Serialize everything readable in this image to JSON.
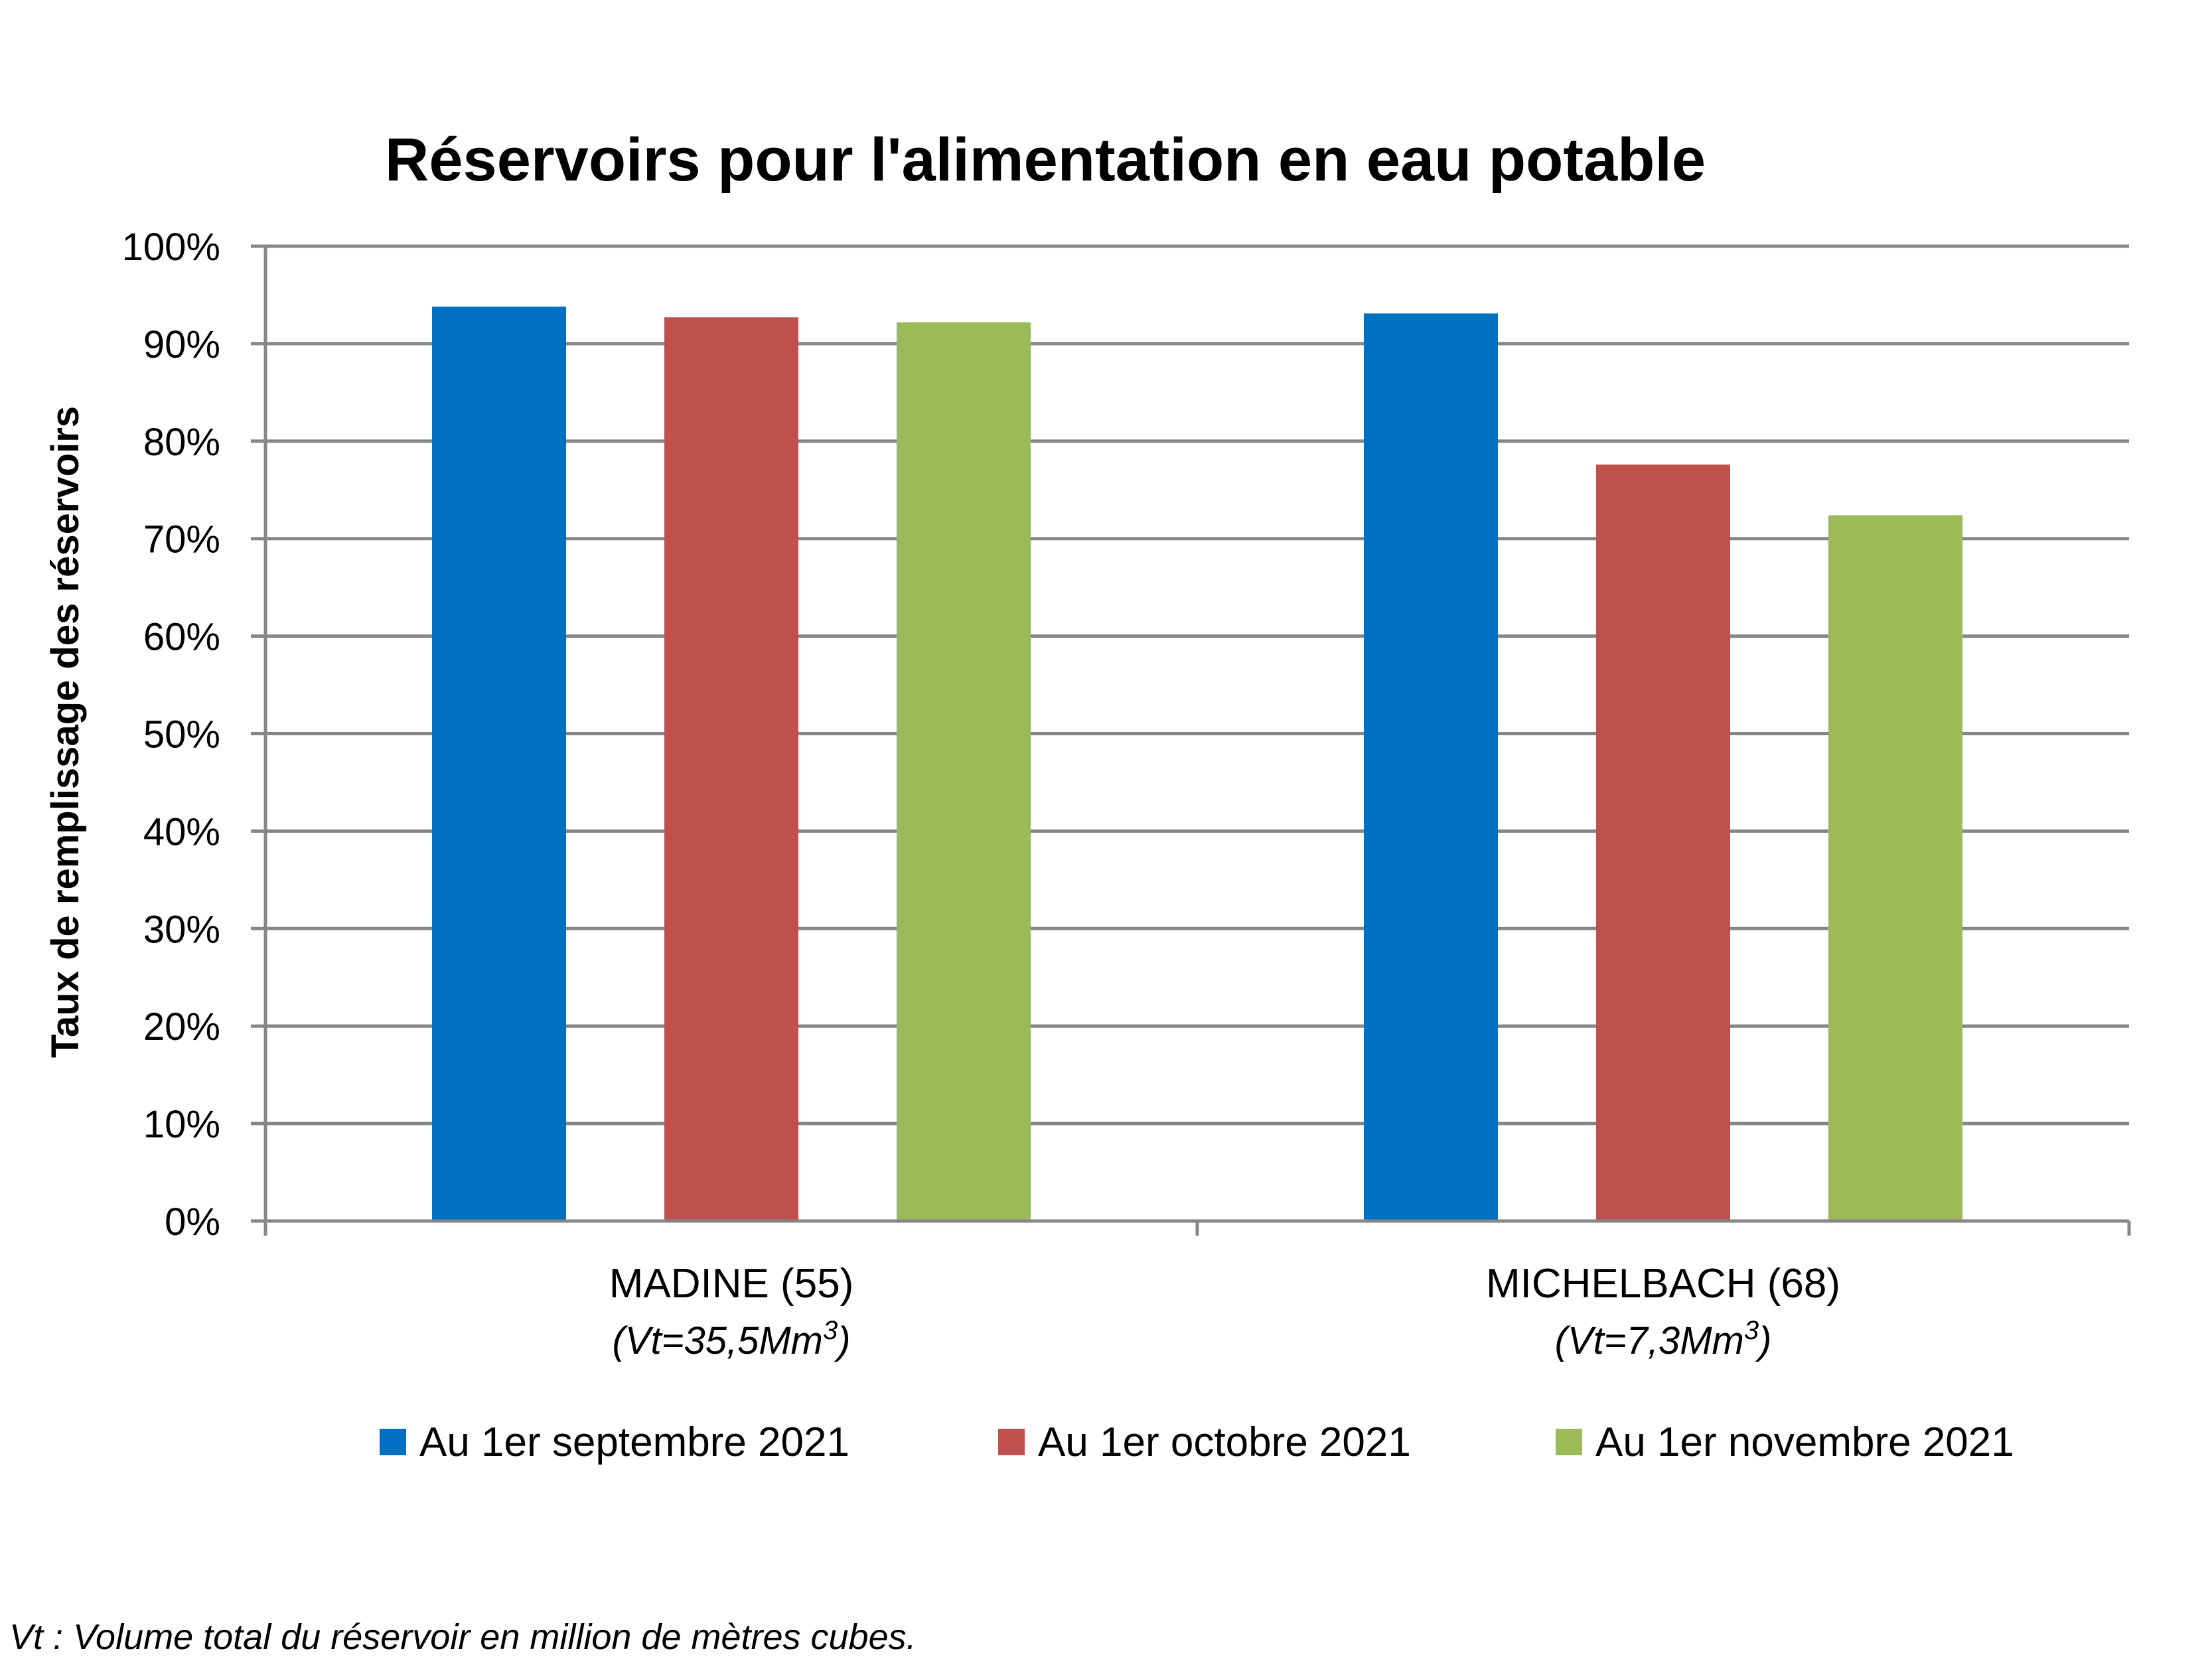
{
  "chart_data": {
    "type": "bar",
    "title": "Réservoirs pour l'alimentation en eau potable",
    "ylabel": "Taux de remplissage des réservoirs",
    "xlabel": "",
    "ylim": [
      0,
      100
    ],
    "yticks": [
      0,
      10,
      20,
      30,
      40,
      50,
      60,
      70,
      80,
      90,
      100
    ],
    "ytick_labels": [
      "0%",
      "10%",
      "20%",
      "30%",
      "40%",
      "50%",
      "60%",
      "70%",
      "80%",
      "90%",
      "100%"
    ],
    "grid": true,
    "legend_position": "bottom",
    "categories": [
      "MADINE (55)",
      "MICHELBACH (68)"
    ],
    "category_notes": [
      "(Vt=35,5Mm",
      "(Vt=7,3Mm"
    ],
    "category_note_superscript": "3",
    "category_note_suffix": ")",
    "series": [
      {
        "name": "Au 1er septembre 2021",
        "color": "#0070C0",
        "values": [
          93.8,
          93.1
        ]
      },
      {
        "name": "Au 1er octobre 2021",
        "color": "#C0504D",
        "values": [
          92.7,
          77.6
        ]
      },
      {
        "name": "Au 1er novembre 2021",
        "color": "#9BBB59",
        "values": [
          92.2,
          72.4
        ]
      }
    ],
    "gridline_color": "#868686",
    "footnote": "Vt : Volume total du réservoir en million de mètres cubes."
  }
}
